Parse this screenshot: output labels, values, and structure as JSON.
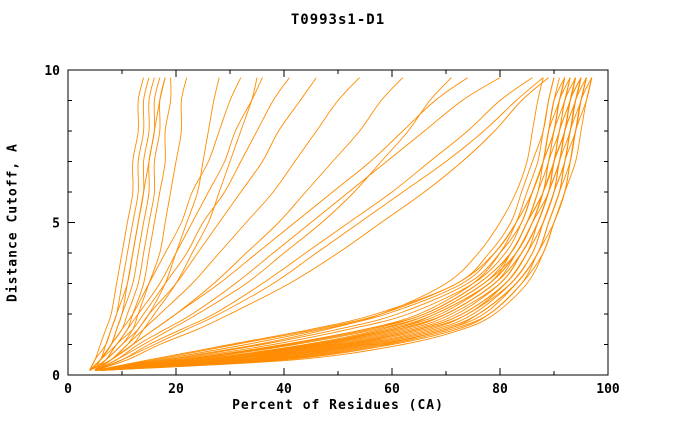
{
  "chart_data": {
    "type": "line",
    "title": "T0993s1-D1",
    "xlabel": "Percent of Residues (CA)",
    "ylabel": "Distance Cutoff, A",
    "xlim": [
      0,
      100
    ],
    "ylim": [
      0,
      10
    ],
    "grid": false,
    "legend": "none",
    "line_color": "#ff8c00",
    "frame_color": "#000000",
    "background_color": "#ffffff",
    "x_ticks": {
      "major": [
        0,
        20,
        40,
        60,
        80,
        100
      ],
      "minor": [
        10,
        30,
        50,
        70,
        90
      ]
    },
    "y_ticks": {
      "major": [
        0,
        5,
        10
      ],
      "minor": [
        1,
        2,
        3,
        4,
        6,
        7,
        8,
        9
      ]
    },
    "series_description": "Each curve is one predicted model: percent of CA residues (x) within a distance cutoff in Angstroms (y). x values sampled at the shared y_grid cutoffs.",
    "y_grid": [
      0.15,
      0.5,
      1,
      1.5,
      2,
      3,
      4,
      5,
      6,
      7,
      8,
      9,
      9.75
    ],
    "curves": [
      [
        5,
        18,
        35,
        48,
        58,
        70,
        76,
        80,
        83,
        85,
        86,
        87,
        88
      ],
      [
        5,
        22,
        40,
        55,
        65,
        75,
        80,
        83,
        85,
        87,
        88,
        89,
        90
      ],
      [
        6,
        25,
        45,
        60,
        68,
        78,
        82,
        85,
        87,
        88,
        89,
        90,
        91
      ],
      [
        5,
        15,
        30,
        45,
        57,
        72,
        78,
        82,
        84,
        86,
        88,
        89,
        90
      ],
      [
        5,
        28,
        48,
        62,
        70,
        79,
        83,
        86,
        88,
        89,
        90,
        91,
        92
      ],
      [
        6,
        32,
        52,
        65,
        73,
        81,
        85,
        87,
        89,
        90,
        91,
        92,
        93
      ],
      [
        5,
        20,
        38,
        52,
        63,
        75,
        81,
        84,
        86,
        88,
        89,
        90,
        92
      ],
      [
        6,
        35,
        55,
        68,
        75,
        82,
        86,
        88,
        90,
        91,
        92,
        93,
        94
      ],
      [
        5,
        24,
        44,
        58,
        67,
        77,
        82,
        85,
        87,
        89,
        90,
        92,
        93
      ],
      [
        6,
        30,
        50,
        64,
        72,
        80,
        84,
        87,
        89,
        90,
        92,
        93,
        95
      ],
      [
        5,
        17,
        33,
        47,
        59,
        73,
        79,
        83,
        86,
        88,
        90,
        91,
        93
      ],
      [
        6,
        38,
        58,
        70,
        77,
        83,
        87,
        89,
        91,
        92,
        93,
        94,
        96
      ],
      [
        5,
        26,
        46,
        60,
        69,
        78,
        83,
        86,
        88,
        90,
        91,
        93,
        94
      ],
      [
        6,
        34,
        54,
        67,
        74,
        82,
        86,
        88,
        90,
        92,
        93,
        94,
        95
      ],
      [
        5,
        21,
        40,
        55,
        66,
        76,
        82,
        85,
        88,
        89,
        91,
        92,
        94
      ],
      [
        6,
        40,
        60,
        72,
        78,
        84,
        88,
        90,
        92,
        93,
        94,
        95,
        97
      ],
      [
        5,
        27,
        47,
        61,
        70,
        79,
        84,
        87,
        89,
        91,
        92,
        94,
        95
      ],
      [
        6,
        36,
        56,
        69,
        76,
        83,
        87,
        89,
        91,
        92,
        94,
        95,
        96
      ],
      [
        5,
        23,
        42,
        57,
        67,
        77,
        83,
        86,
        88,
        90,
        92,
        93,
        95
      ],
      [
        6,
        42,
        62,
        73,
        79,
        85,
        88,
        90,
        92,
        94,
        95,
        96,
        97
      ],
      [
        5,
        19,
        36,
        50,
        61,
        74,
        80,
        84,
        86,
        88,
        90,
        91,
        92
      ],
      [
        6,
        29,
        49,
        63,
        71,
        80,
        84,
        87,
        89,
        91,
        92,
        93,
        94
      ],
      [
        5,
        16,
        31,
        46,
        58,
        72,
        79,
        83,
        86,
        88,
        89,
        91,
        92
      ],
      [
        6,
        37,
        57,
        70,
        76,
        83,
        87,
        89,
        91,
        93,
        94,
        95,
        96
      ],
      [
        5,
        25,
        45,
        59,
        68,
        78,
        83,
        86,
        89,
        90,
        92,
        93,
        94
      ],
      [
        6,
        33,
        53,
        66,
        74,
        81,
        85,
        88,
        90,
        91,
        93,
        94,
        95
      ],
      [
        5,
        22,
        41,
        56,
        66,
        76,
        82,
        85,
        88,
        90,
        91,
        93,
        94
      ],
      [
        6,
        39,
        59,
        71,
        78,
        84,
        87,
        90,
        92,
        93,
        94,
        96,
        97
      ],
      [
        5,
        28,
        47,
        61,
        70,
        79,
        84,
        87,
        89,
        91,
        92,
        94,
        95
      ],
      [
        6,
        31,
        51,
        65,
        73,
        81,
        85,
        88,
        90,
        92,
        93,
        95,
        96
      ],
      [
        5,
        10,
        16,
        22,
        28,
        38,
        46,
        54,
        62,
        70,
        77,
        83,
        88
      ],
      [
        5,
        9,
        14,
        19,
        24,
        33,
        40,
        47,
        53,
        58,
        63,
        67,
        71
      ],
      [
        5,
        8,
        12,
        16,
        20,
        27,
        33,
        39,
        44,
        49,
        54,
        58,
        62
      ],
      [
        5,
        8,
        11,
        14,
        17,
        23,
        28,
        33,
        38,
        42,
        46,
        50,
        54
      ],
      [
        4,
        7,
        10,
        13,
        15,
        20,
        24,
        28,
        32,
        36,
        39,
        43,
        46
      ],
      [
        4,
        7,
        9,
        12,
        14,
        18,
        22,
        25,
        29,
        32,
        35,
        38,
        41
      ],
      [
        4,
        6,
        9,
        11,
        13,
        17,
        20,
        23,
        26,
        29,
        31,
        34,
        36
      ],
      [
        4,
        6,
        8,
        10,
        12,
        15,
        18,
        21,
        23,
        26,
        28,
        30,
        32
      ],
      [
        5,
        9,
        13,
        18,
        23,
        31,
        38,
        45,
        52,
        59,
        66,
        73,
        80
      ],
      [
        5,
        11,
        17,
        24,
        30,
        41,
        50,
        58,
        66,
        73,
        79,
        84,
        89
      ],
      [
        4,
        8,
        12,
        16,
        20,
        28,
        35,
        42,
        49,
        56,
        62,
        68,
        74
      ],
      [
        5,
        10,
        15,
        21,
        27,
        36,
        44,
        52,
        60,
        67,
        74,
        80,
        86
      ],
      [
        4,
        5,
        6,
        7,
        8,
        9,
        10,
        11,
        12,
        12,
        13,
        13,
        14
      ],
      [
        4,
        5,
        7,
        8,
        9,
        10,
        11,
        12,
        13,
        13,
        14,
        14,
        15
      ],
      [
        4,
        6,
        7,
        8,
        9,
        11,
        12,
        13,
        14,
        14,
        15,
        15,
        16
      ],
      [
        4,
        6,
        8,
        9,
        10,
        12,
        13,
        14,
        15,
        15,
        16,
        16,
        17
      ],
      [
        5,
        6,
        8,
        10,
        11,
        13,
        14,
        15,
        16,
        16,
        17,
        17,
        18
      ],
      [
        5,
        7,
        9,
        11,
        12,
        14,
        15,
        16,
        17,
        18,
        18,
        19,
        19
      ],
      [
        5,
        7,
        10,
        12,
        13,
        15,
        17,
        18,
        19,
        20,
        21,
        21,
        22
      ],
      [
        5,
        8,
        11,
        13,
        15,
        18,
        20,
        22,
        24,
        25,
        26,
        27,
        28
      ],
      [
        4,
        6,
        8,
        9,
        10,
        11,
        12,
        13,
        14,
        15,
        16,
        17,
        18
      ],
      [
        5,
        8,
        12,
        14,
        16,
        20,
        23,
        26,
        28,
        30,
        32,
        34,
        35
      ]
    ]
  }
}
